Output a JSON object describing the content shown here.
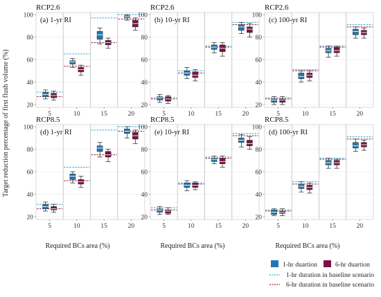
{
  "ylabel": "Target reduction percentage of first flush volume (%)",
  "xlabel": "Required BCs area (%)",
  "colors": {
    "one_hr_fill": "#1f78b4",
    "six_hr_fill": "#7b1245",
    "one_hr_baseline": "#2ba6c9",
    "six_hr_baseline": "#8b1a3c",
    "panel_bg": "#ffffff",
    "panel_border": "#cfcfcf",
    "gridline": "#e3e3e3",
    "separator": "#c9c9c9"
  },
  "legend": {
    "items": [
      {
        "key": "box1",
        "label": "1-hr duartion"
      },
      {
        "key": "box6",
        "label": "6-hr duartion"
      },
      {
        "key": "line1",
        "label": "1-hr duration in baseline scenario"
      },
      {
        "key": "line6",
        "label": "6-hr duration in baseline scenario"
      }
    ]
  },
  "chart_data": [
    {
      "type": "box",
      "scenario": "RCP2.6",
      "panel_label": "(a) 1-yr RI",
      "categories": [
        "5",
        "10",
        "15",
        "20"
      ],
      "ylim": [
        20,
        100
      ],
      "yticks": [
        20,
        40,
        60,
        80,
        100
      ],
      "series": [
        {
          "name": "1-hr duartion",
          "boxes": [
            {
              "min": 25,
              "q1": 27,
              "median": 29,
              "q3": 31,
              "max": 33
            },
            {
              "min": 53,
              "q1": 56,
              "median": 58,
              "q3": 59,
              "max": 61
            },
            {
              "min": 74,
              "q1": 78,
              "median": 82,
              "q3": 85,
              "max": 88
            },
            {
              "min": 95,
              "q1": 97,
              "median": 98,
              "q3": 99,
              "max": 100
            }
          ]
        },
        {
          "name": "6-hr duartion",
          "boxes": [
            {
              "min": 24,
              "q1": 26,
              "median": 28,
              "q3": 30,
              "max": 32
            },
            {
              "min": 46,
              "q1": 49,
              "median": 51,
              "q3": 53,
              "max": 55
            },
            {
              "min": 70,
              "q1": 73,
              "median": 75,
              "q3": 77,
              "max": 79
            },
            {
              "min": 86,
              "q1": 89,
              "median": 92,
              "q3": 95,
              "max": 97
            }
          ]
        }
      ],
      "baselines": [
        {
          "name": "1-hr duration in baseline scenario",
          "values": [
            31,
            65,
            97,
            100
          ]
        },
        {
          "name": "6-hr duration in baseline scenario",
          "values": [
            27,
            54,
            75,
            96
          ]
        }
      ]
    },
    {
      "type": "box",
      "scenario": "RCP2.6",
      "panel_label": "(b) 10-yr RI",
      "categories": [
        "5",
        "10",
        "15",
        "20"
      ],
      "ylim": [
        20,
        100
      ],
      "yticks": [
        20,
        40,
        60,
        80,
        100
      ],
      "series": [
        {
          "name": "1-hr duartion",
          "boxes": [
            {
              "min": 22,
              "q1": 24,
              "median": 26,
              "q3": 27,
              "max": 29
            },
            {
              "min": 43,
              "q1": 46,
              "median": 48,
              "q3": 50,
              "max": 53
            },
            {
              "min": 66,
              "q1": 69,
              "median": 71,
              "q3": 73,
              "max": 75
            },
            {
              "min": 83,
              "q1": 86,
              "median": 89,
              "q3": 91,
              "max": 93
            }
          ]
        },
        {
          "name": "6-hr duartion",
          "boxes": [
            {
              "min": 21,
              "q1": 23,
              "median": 25,
              "q3": 27,
              "max": 28
            },
            {
              "min": 41,
              "q1": 44,
              "median": 46,
              "q3": 49,
              "max": 51
            },
            {
              "min": 63,
              "q1": 67,
              "median": 70,
              "q3": 73,
              "max": 75
            },
            {
              "min": 80,
              "q1": 84,
              "median": 87,
              "q3": 89,
              "max": 92
            }
          ]
        }
      ],
      "baselines": [
        {
          "name": "1-hr duration in baseline scenario",
          "values": [
            26,
            50,
            72,
            93
          ]
        },
        {
          "name": "6-hr duration in baseline scenario",
          "values": [
            25,
            48,
            71,
            91
          ]
        }
      ]
    },
    {
      "type": "box",
      "scenario": "RCP2.6",
      "panel_label": "(c) 100-yr RI",
      "categories": [
        "5",
        "10",
        "15",
        "20"
      ],
      "ylim": [
        20,
        100
      ],
      "yticks": [
        20,
        40,
        60,
        80,
        100
      ],
      "series": [
        {
          "name": "1-hr duartion",
          "boxes": [
            {
              "min": 20,
              "q1": 22,
              "median": 24,
              "q3": 25,
              "max": 27
            },
            {
              "min": 40,
              "q1": 43,
              "median": 45,
              "q3": 48,
              "max": 50
            },
            {
              "min": 62,
              "q1": 66,
              "median": 68,
              "q3": 70,
              "max": 72
            },
            {
              "min": 79,
              "q1": 82,
              "median": 85,
              "q3": 87,
              "max": 89
            }
          ]
        },
        {
          "name": "6-hr duartion",
          "boxes": [
            {
              "min": 20,
              "q1": 22,
              "median": 24,
              "q3": 25,
              "max": 27
            },
            {
              "min": 41,
              "q1": 44,
              "median": 46,
              "q3": 48,
              "max": 50
            },
            {
              "min": 63,
              "q1": 66,
              "median": 68,
              "q3": 71,
              "max": 72
            },
            {
              "min": 79,
              "q1": 82,
              "median": 84,
              "q3": 86,
              "max": 88
            }
          ]
        }
      ],
      "baselines": [
        {
          "name": "1-hr duration in baseline scenario",
          "values": [
            26,
            51,
            72,
            91
          ]
        },
        {
          "name": "6-hr duration in baseline scenario",
          "values": [
            25,
            50,
            71,
            89
          ]
        }
      ]
    },
    {
      "type": "box",
      "scenario": "RCP8.5",
      "panel_label": "(d) 1-yr RI",
      "categories": [
        "5",
        "10",
        "15",
        "20"
      ],
      "ylim": [
        20,
        100
      ],
      "yticks": [
        20,
        40,
        60,
        80,
        100
      ],
      "series": [
        {
          "name": "1-hr duartion",
          "boxes": [
            {
              "min": 25,
              "q1": 27,
              "median": 29,
              "q3": 31,
              "max": 33
            },
            {
              "min": 50,
              "q1": 53,
              "median": 56,
              "q3": 58,
              "max": 60
            },
            {
              "min": 73,
              "q1": 78,
              "median": 81,
              "q3": 83,
              "max": 86
            },
            {
              "min": 90,
              "q1": 94,
              "median": 96,
              "q3": 98,
              "max": 100
            }
          ]
        },
        {
          "name": "6-hr duartion",
          "boxes": [
            {
              "min": 24,
              "q1": 26,
              "median": 27,
              "q3": 29,
              "max": 31
            },
            {
              "min": 46,
              "q1": 49,
              "median": 51,
              "q3": 53,
              "max": 56
            },
            {
              "min": 69,
              "q1": 73,
              "median": 75,
              "q3": 78,
              "max": 80
            },
            {
              "min": 85,
              "q1": 89,
              "median": 92,
              "q3": 95,
              "max": 97
            }
          ]
        }
      ],
      "baselines": [
        {
          "name": "1-hr duration in baseline scenario",
          "values": [
            31,
            64,
            97,
            100
          ]
        },
        {
          "name": "6-hr duration in baseline scenario",
          "values": [
            27,
            52,
            75,
            96
          ]
        }
      ]
    },
    {
      "type": "box",
      "scenario": "RCP8.5",
      "panel_label": "(e) 10-yr RI",
      "categories": [
        "5",
        "10",
        "15",
        "20"
      ],
      "ylim": [
        20,
        100
      ],
      "yticks": [
        20,
        40,
        60,
        80,
        100
      ],
      "series": [
        {
          "name": "1-hr duartion",
          "boxes": [
            {
              "min": 22,
              "q1": 24,
              "median": 26,
              "q3": 27,
              "max": 29
            },
            {
              "min": 43,
              "q1": 46,
              "median": 48,
              "q3": 50,
              "max": 52
            },
            {
              "min": 67,
              "q1": 69,
              "median": 71,
              "q3": 72,
              "max": 74
            },
            {
              "min": 82,
              "q1": 86,
              "median": 88,
              "q3": 90,
              "max": 93
            }
          ]
        },
        {
          "name": "6-hr duartion",
          "boxes": [
            {
              "min": 22,
              "q1": 23,
              "median": 25,
              "q3": 26,
              "max": 28
            },
            {
              "min": 44,
              "q1": 46,
              "median": 48,
              "q3": 50,
              "max": 51
            },
            {
              "min": 64,
              "q1": 67,
              "median": 69,
              "q3": 72,
              "max": 74
            },
            {
              "min": 80,
              "q1": 83,
              "median": 85,
              "q3": 88,
              "max": 91
            }
          ]
        }
      ],
      "baselines": [
        {
          "name": "1-hr duration in baseline scenario",
          "values": [
            28,
            50,
            73,
            94
          ]
        },
        {
          "name": "6-hr duration in baseline scenario",
          "values": [
            26,
            49,
            72,
            92
          ]
        }
      ]
    },
    {
      "type": "box",
      "scenario": "RCP8.5",
      "panel_label": "(d) 100-yr RI",
      "categories": [
        "5",
        "10",
        "15",
        "20"
      ],
      "ylim": [
        20,
        100
      ],
      "yticks": [
        20,
        40,
        60,
        80,
        100
      ],
      "series": [
        {
          "name": "1-hr duartion",
          "boxes": [
            {
              "min": 21,
              "q1": 22,
              "median": 24,
              "q3": 26,
              "max": 27
            },
            {
              "min": 42,
              "q1": 45,
              "median": 47,
              "q3": 49,
              "max": 51
            },
            {
              "min": 63,
              "q1": 66,
              "median": 68,
              "q3": 70,
              "max": 72
            },
            {
              "min": 78,
              "q1": 81,
              "median": 83,
              "q3": 86,
              "max": 89
            }
          ]
        },
        {
          "name": "6-hr duartion",
          "boxes": [
            {
              "min": 21,
              "q1": 23,
              "median": 24,
              "q3": 25,
              "max": 27
            },
            {
              "min": 41,
              "q1": 44,
              "median": 46,
              "q3": 48,
              "max": 50
            },
            {
              "min": 63,
              "q1": 66,
              "median": 68,
              "q3": 70,
              "max": 71
            },
            {
              "min": 79,
              "q1": 82,
              "median": 84,
              "q3": 86,
              "max": 88
            }
          ]
        }
      ],
      "baselines": [
        {
          "name": "1-hr duration in baseline scenario",
          "values": [
            26,
            51,
            72,
            91
          ]
        },
        {
          "name": "6-hr duration in baseline scenario",
          "values": [
            25,
            49,
            71,
            89
          ]
        }
      ]
    }
  ]
}
